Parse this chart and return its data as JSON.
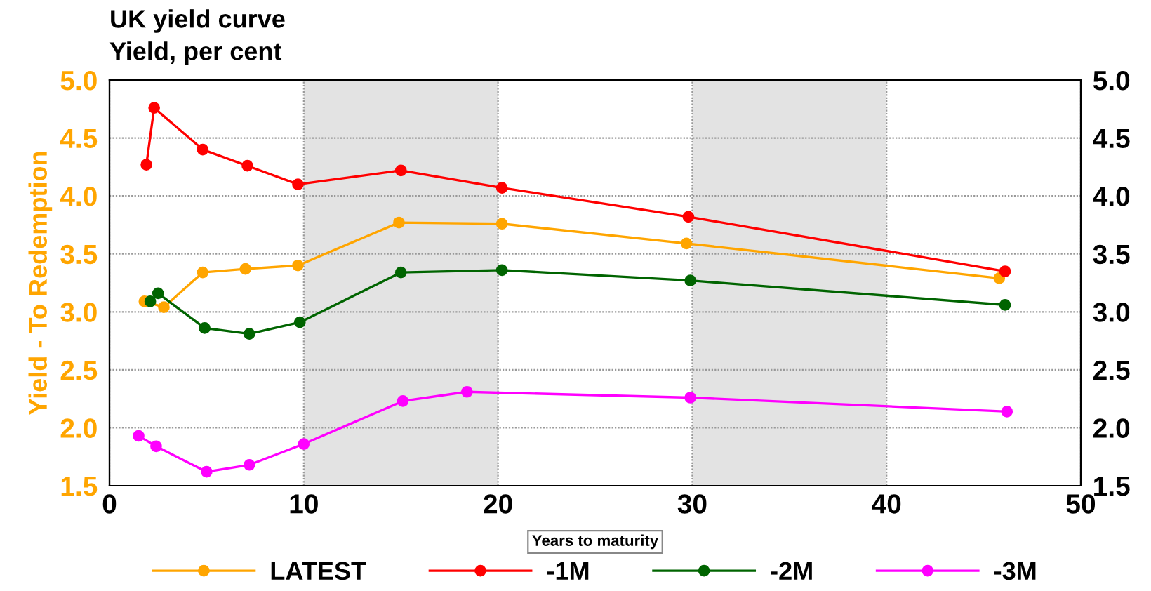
{
  "chart_data": {
    "type": "line",
    "title": "UK yield curve",
    "subtitle": "Yield, per cent",
    "xlabel": "Years to maturity",
    "ylabel": "Yield - To Redemption",
    "xlim": [
      0,
      50
    ],
    "xticks": [
      0,
      10,
      20,
      30,
      40,
      50
    ],
    "ylim": [
      1.5,
      5.0
    ],
    "yticks": [
      {
        "value": 1.5,
        "label": "1.5"
      },
      {
        "value": 2.0,
        "label": "2.0"
      },
      {
        "value": 2.5,
        "label": "2.5"
      },
      {
        "value": 3.0,
        "label": "3.0"
      },
      {
        "value": 3.5,
        "label": "3.5"
      },
      {
        "value": 4.0,
        "label": "4.0"
      },
      {
        "value": 4.5,
        "label": "4.5"
      },
      {
        "value": 5.0,
        "label": "5.0"
      }
    ],
    "y2lim": [
      1.5,
      5.0
    ],
    "y2ticks": [
      {
        "value": 1.5,
        "label": "1.5"
      },
      {
        "value": 2.0,
        "label": "2.0"
      },
      {
        "value": 2.5,
        "label": "2.5"
      },
      {
        "value": 3.0,
        "label": "3.0"
      },
      {
        "value": 3.5,
        "label": "3.5"
      },
      {
        "value": 4.0,
        "label": "4.0"
      },
      {
        "value": 4.5,
        "label": "4.5"
      },
      {
        "value": 5.0,
        "label": "5.0"
      }
    ],
    "grid": true,
    "legend": "bottom",
    "marker": "circle",
    "line_style": "solid",
    "bands": [
      {
        "axis": "x",
        "from": 10,
        "to": 20,
        "color": "#e3e3e3"
      },
      {
        "axis": "x",
        "from": 30,
        "to": 40,
        "color": "#e3e3e3"
      }
    ],
    "series": [
      {
        "name": "LATEST",
        "color": "#ffa500",
        "x": [
          1.8,
          2.8,
          4.8,
          7.0,
          9.7,
          14.9,
          20.2,
          29.7,
          45.8
        ],
        "values": [
          3.09,
          3.04,
          3.34,
          3.37,
          3.4,
          3.77,
          3.76,
          3.59,
          3.29
        ]
      },
      {
        "name": "-1M",
        "color": "#ff0000",
        "x": [
          1.9,
          2.3,
          4.8,
          7.1,
          9.7,
          15.0,
          20.2,
          29.8,
          46.1
        ],
        "values": [
          4.27,
          4.76,
          4.4,
          4.26,
          4.1,
          4.22,
          4.07,
          3.82,
          3.35
        ]
      },
      {
        "name": "-2M",
        "color": "#006400",
        "x": [
          2.1,
          2.5,
          4.9,
          7.2,
          9.8,
          15.0,
          20.2,
          29.9,
          46.1
        ],
        "values": [
          3.09,
          3.16,
          2.86,
          2.81,
          2.91,
          3.34,
          3.36,
          3.27,
          3.06
        ]
      },
      {
        "name": "-3M",
        "color": "#ff00ff",
        "x": [
          1.5,
          2.4,
          5.0,
          7.2,
          10.0,
          15.1,
          18.4,
          29.9,
          46.2
        ],
        "values": [
          1.93,
          1.84,
          1.62,
          1.68,
          1.86,
          2.23,
          2.31,
          2.26,
          2.14
        ]
      }
    ]
  }
}
